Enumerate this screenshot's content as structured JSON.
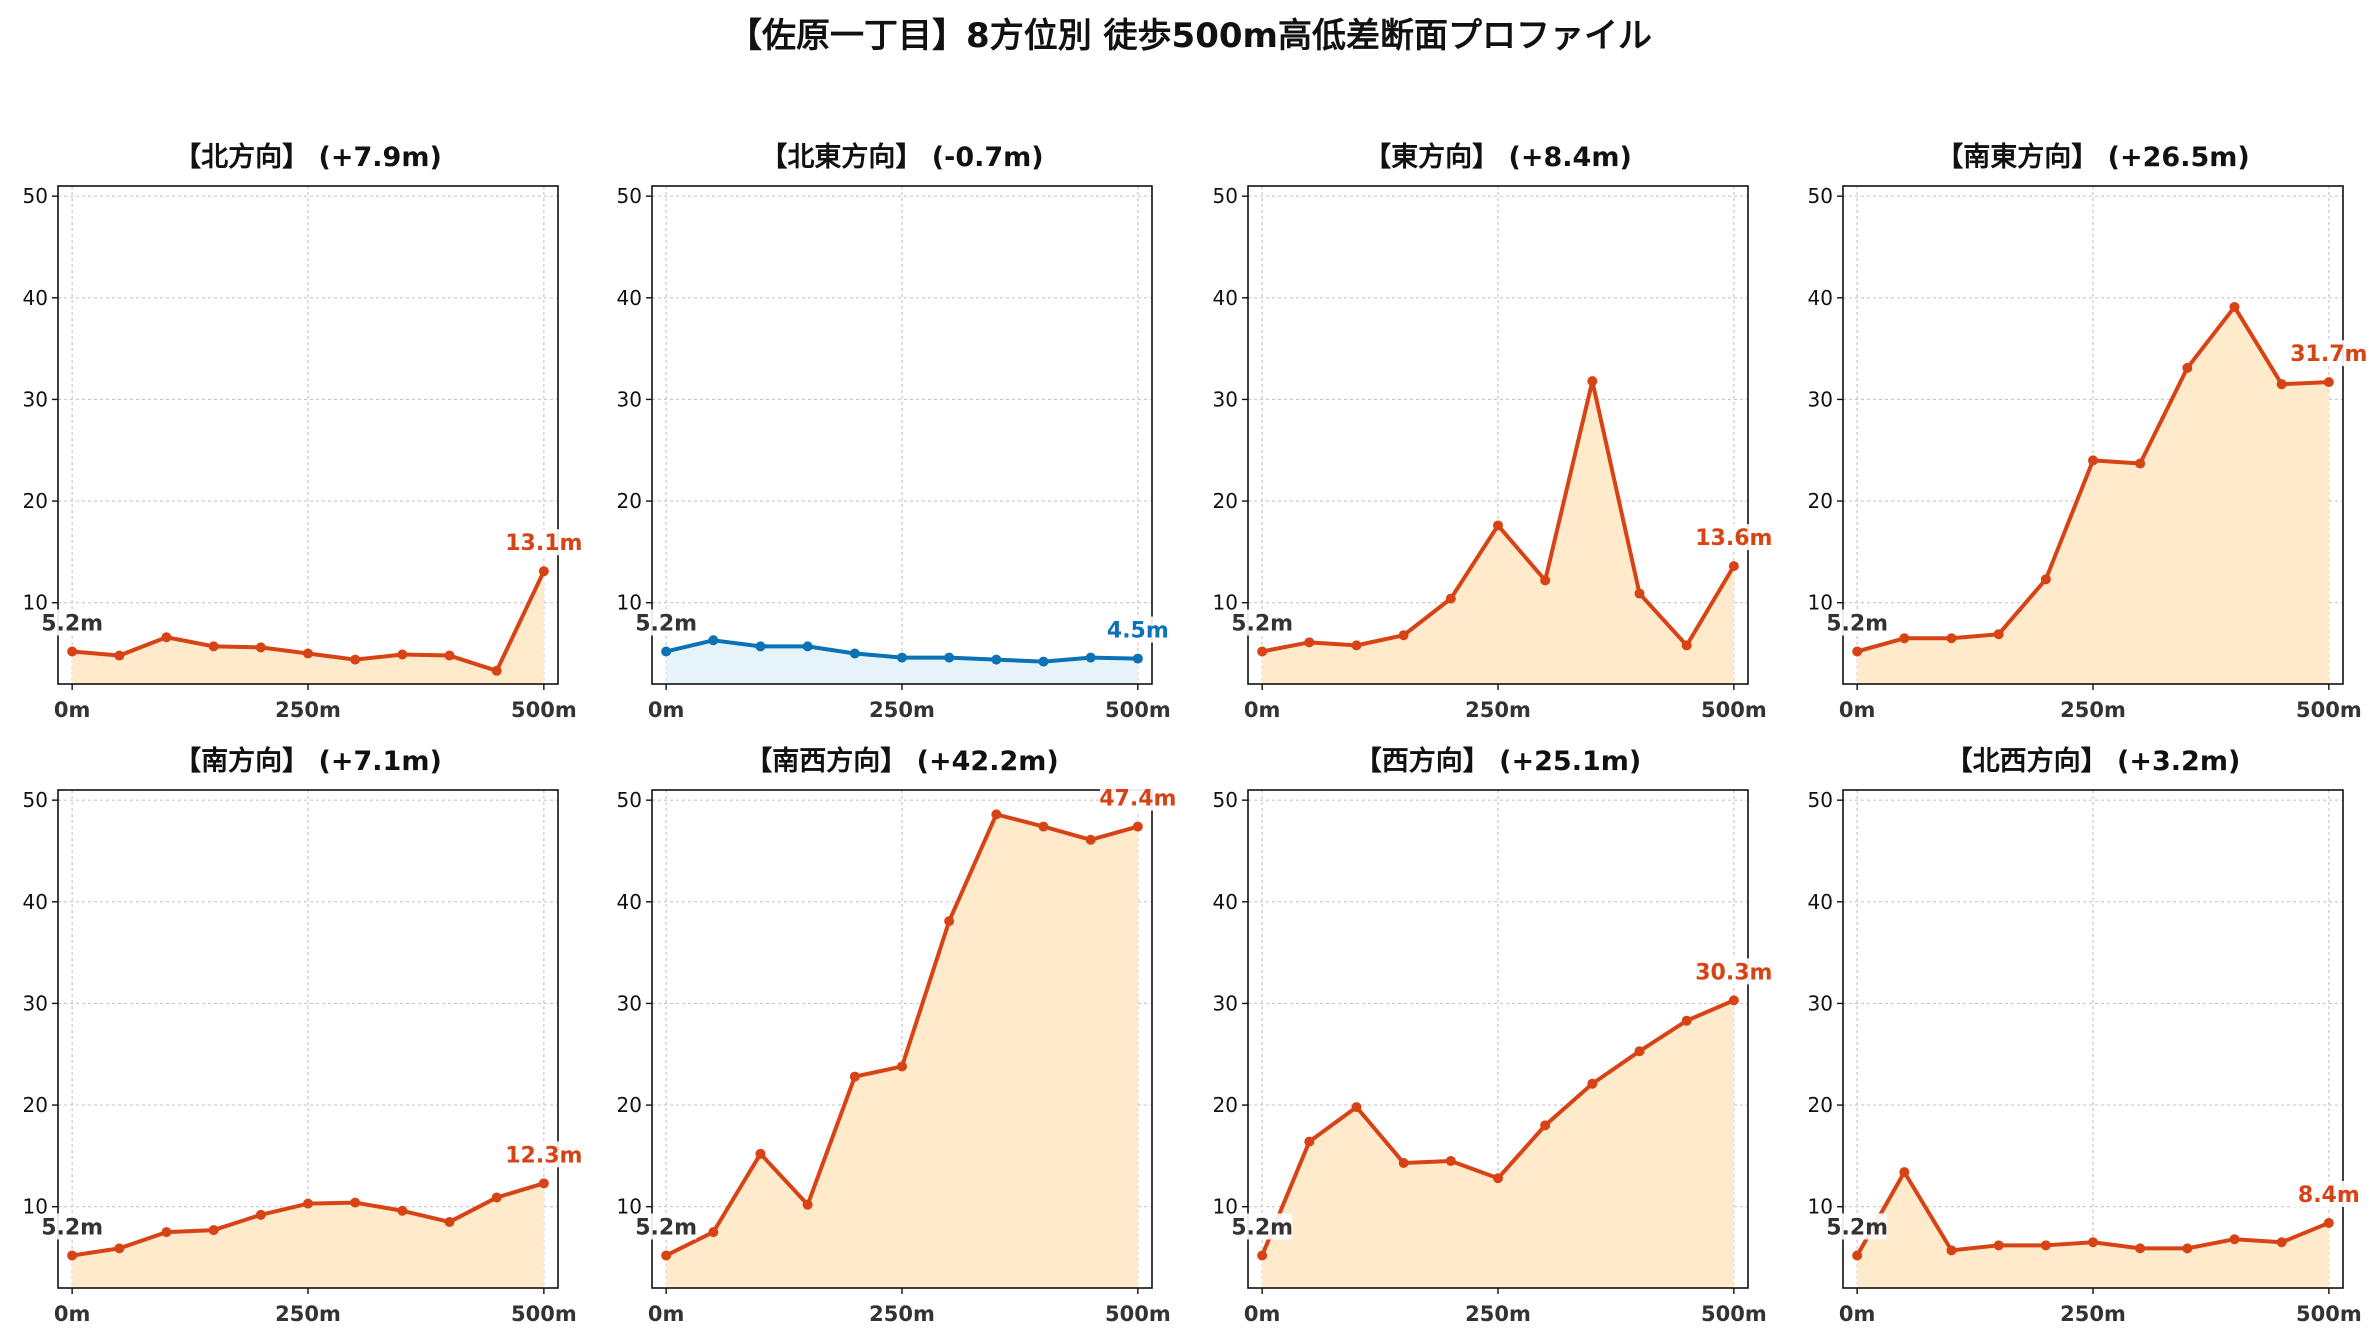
{
  "title": "【佐原一丁目】8方位別 徒歩500m高低差断面プロファイル",
  "colors": {
    "uphill_line": "#D84315",
    "uphill_fill": "#FFEBCC",
    "downhill_line": "#0B72B5",
    "downhill_fill": "#E6F4FA",
    "start_label": "#333333"
  },
  "chart_data": [
    {
      "type": "area",
      "title": "【北方向】 (+7.9m)",
      "direction": "uphill",
      "x": [
        0,
        50,
        100,
        150,
        200,
        250,
        300,
        350,
        400,
        450,
        500
      ],
      "y": [
        5.2,
        4.8,
        6.6,
        5.7,
        5.6,
        5.0,
        4.4,
        4.9,
        4.8,
        3.3,
        13.1
      ],
      "start_label": "5.2m",
      "end_label": "13.1m",
      "xticks": [
        "0m",
        "250m",
        "500m"
      ],
      "yticks": [
        10,
        20,
        30,
        40,
        50
      ],
      "ylim": [
        2,
        51
      ],
      "grid": true
    },
    {
      "type": "area",
      "title": "【北東方向】 (-0.7m)",
      "direction": "downhill",
      "x": [
        0,
        50,
        100,
        150,
        200,
        250,
        300,
        350,
        400,
        450,
        500
      ],
      "y": [
        5.2,
        6.3,
        5.7,
        5.7,
        5.0,
        4.6,
        4.6,
        4.4,
        4.2,
        4.6,
        4.5
      ],
      "start_label": "5.2m",
      "end_label": "4.5m",
      "xticks": [
        "0m",
        "250m",
        "500m"
      ],
      "yticks": [
        10,
        20,
        30,
        40,
        50
      ],
      "ylim": [
        2,
        51
      ],
      "grid": true
    },
    {
      "type": "area",
      "title": "【東方向】 (+8.4m)",
      "direction": "uphill",
      "x": [
        0,
        50,
        100,
        150,
        200,
        250,
        300,
        350,
        400,
        450,
        500
      ],
      "y": [
        5.2,
        6.1,
        5.8,
        6.8,
        10.4,
        17.6,
        12.2,
        31.8,
        10.9,
        5.8,
        13.6
      ],
      "start_label": "5.2m",
      "end_label": "13.6m",
      "xticks": [
        "0m",
        "250m",
        "500m"
      ],
      "yticks": [
        10,
        20,
        30,
        40,
        50
      ],
      "ylim": [
        2,
        51
      ],
      "grid": true
    },
    {
      "type": "area",
      "title": "【南東方向】 (+26.5m)",
      "direction": "uphill",
      "x": [
        0,
        50,
        100,
        150,
        200,
        250,
        300,
        350,
        400,
        450,
        500
      ],
      "y": [
        5.2,
        6.5,
        6.5,
        6.9,
        12.3,
        24.0,
        23.7,
        33.1,
        39.1,
        31.5,
        31.7
      ],
      "start_label": "5.2m",
      "end_label": "31.7m",
      "xticks": [
        "0m",
        "250m",
        "500m"
      ],
      "yticks": [
        10,
        20,
        30,
        40,
        50
      ],
      "ylim": [
        2,
        51
      ],
      "grid": true
    },
    {
      "type": "area",
      "title": "【南方向】 (+7.1m)",
      "direction": "uphill",
      "x": [
        0,
        50,
        100,
        150,
        200,
        250,
        300,
        350,
        400,
        450,
        500
      ],
      "y": [
        5.2,
        5.9,
        7.5,
        7.7,
        9.2,
        10.3,
        10.4,
        9.6,
        8.5,
        10.9,
        12.3
      ],
      "start_label": "5.2m",
      "end_label": "12.3m",
      "xticks": [
        "0m",
        "250m",
        "500m"
      ],
      "yticks": [
        10,
        20,
        30,
        40,
        50
      ],
      "ylim": [
        2,
        51
      ],
      "grid": true
    },
    {
      "type": "area",
      "title": "【南西方向】 (+42.2m)",
      "direction": "uphill",
      "x": [
        0,
        50,
        100,
        150,
        200,
        250,
        300,
        350,
        400,
        450,
        500
      ],
      "y": [
        5.2,
        7.5,
        15.2,
        10.2,
        22.8,
        23.8,
        38.1,
        48.6,
        47.4,
        46.1,
        47.4
      ],
      "start_label": "5.2m",
      "end_label": "47.4m",
      "xticks": [
        "0m",
        "250m",
        "500m"
      ],
      "yticks": [
        10,
        20,
        30,
        40,
        50
      ],
      "ylim": [
        2,
        51
      ],
      "grid": true
    },
    {
      "type": "area",
      "title": "【西方向】 (+25.1m)",
      "direction": "uphill",
      "x": [
        0,
        50,
        100,
        150,
        200,
        250,
        300,
        350,
        400,
        450,
        500
      ],
      "y": [
        5.2,
        16.4,
        19.8,
        14.3,
        14.5,
        12.8,
        18.0,
        22.1,
        25.3,
        28.3,
        30.3
      ],
      "start_label": "5.2m",
      "end_label": "30.3m",
      "xticks": [
        "0m",
        "250m",
        "500m"
      ],
      "yticks": [
        10,
        20,
        30,
        40,
        50
      ],
      "ylim": [
        2,
        51
      ],
      "grid": true
    },
    {
      "type": "area",
      "title": "【北西方向】 (+3.2m)",
      "direction": "uphill",
      "x": [
        0,
        50,
        100,
        150,
        200,
        250,
        300,
        350,
        400,
        450,
        500
      ],
      "y": [
        5.2,
        13.4,
        5.7,
        6.2,
        6.2,
        6.5,
        5.9,
        5.9,
        6.8,
        6.5,
        8.4
      ],
      "start_label": "5.2m",
      "end_label": "8.4m",
      "xticks": [
        "0m",
        "250m",
        "500m"
      ],
      "yticks": [
        10,
        20,
        30,
        40,
        50
      ],
      "ylim": [
        2,
        51
      ],
      "grid": true
    }
  ]
}
